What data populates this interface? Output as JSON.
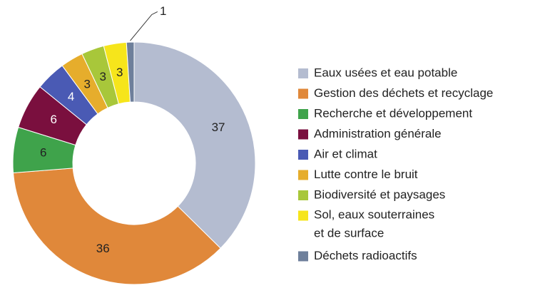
{
  "chart_data": {
    "type": "donut",
    "categories": [
      "Eaux usées et eau potable",
      "Gestion des déchets et recyclage",
      "Recherche et développement",
      "Administration générale",
      "Air et climat",
      "Lutte contre le bruit",
      "Biodiversité et paysages",
      "Sol, eaux souterraines\net de surface",
      "Déchets radioactifs"
    ],
    "values": [
      37,
      36,
      6,
      6,
      4,
      3,
      3,
      3,
      1
    ],
    "colors": [
      "#b4bcd0",
      "#e0883a",
      "#3fa34b",
      "#7a0f3e",
      "#4a5ab4",
      "#e6ad2c",
      "#a8c73a",
      "#f6e51b",
      "#6e7f9b"
    ],
    "legend": "right"
  }
}
